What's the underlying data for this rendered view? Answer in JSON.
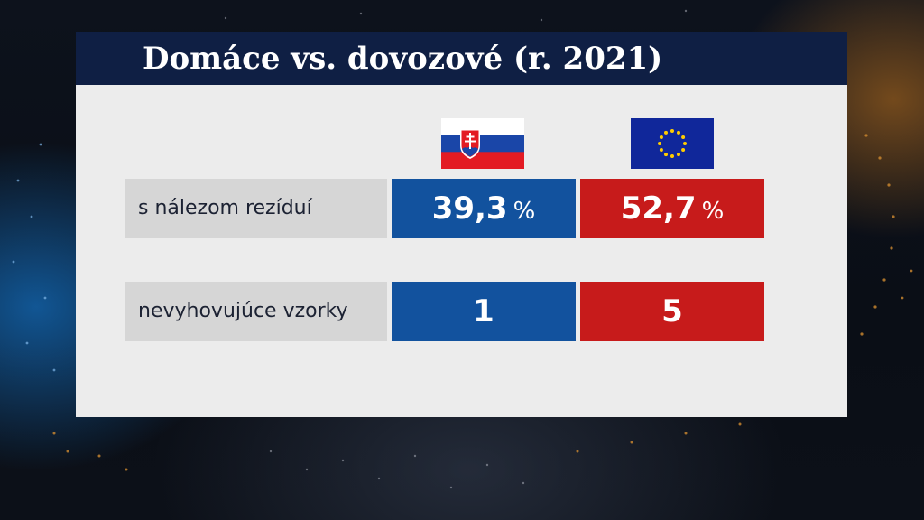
{
  "header": {
    "title": "Domáce vs. dovozové  (r. 2021)"
  },
  "columns": [
    {
      "flag_icon": "slovakia-flag-icon"
    },
    {
      "flag_icon": "eu-flag-icon"
    }
  ],
  "rows": [
    {
      "label": "s nálezom rezíduí",
      "values": [
        "39,3",
        "52,7"
      ],
      "unit": "%"
    },
    {
      "label": "nevyhovujúce vzorky",
      "values": [
        "1",
        "5"
      ]
    }
  ],
  "colors": {
    "title_bar": "#0f1f44",
    "domestic": "#12529e",
    "imported": "#c71b1b",
    "label_bg": "#d6d6d6",
    "panel_bg": "#ececec"
  }
}
